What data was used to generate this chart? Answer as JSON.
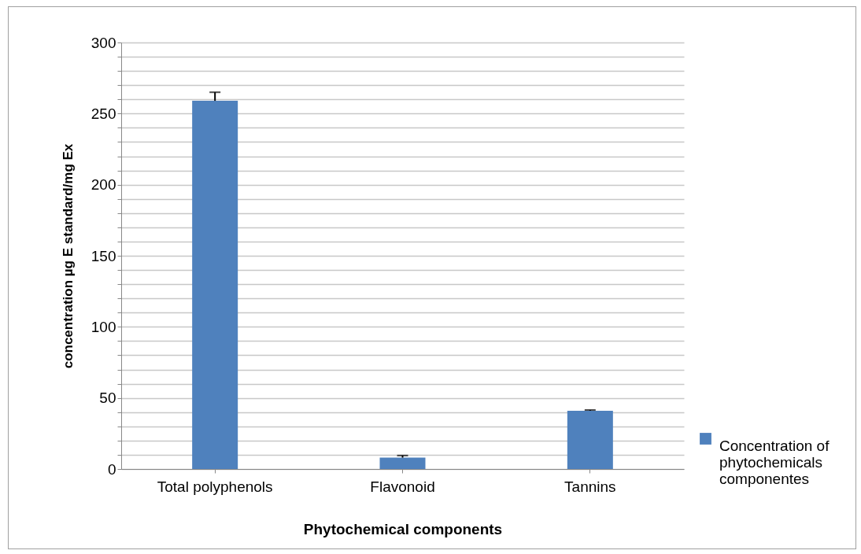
{
  "chart_data": {
    "type": "bar",
    "xlabel": "Phytochemical components",
    "ylabel": "concentration µg E standard/mg Ex",
    "categories": [
      "Total polyphenols",
      "Flavonoid",
      "Tannins"
    ],
    "series": [
      {
        "name": "Concentration of phytochemicals componentes",
        "color": "#4f81bd",
        "values": [
          259,
          8,
          41
        ],
        "errors": [
          [
            259,
            265
          ],
          [
            8,
            9.5
          ],
          [
            41,
            41.5
          ]
        ]
      }
    ],
    "ylim": [
      0,
      300
    ],
    "yticks": [
      0,
      {
        "value": 10,
        "label": null
      },
      {
        "value": 20,
        "label": null
      },
      {
        "value": 30,
        "label": null
      },
      {
        "value": 40,
        "label": null
      },
      50,
      {
        "value": 60,
        "label": null
      },
      {
        "value": 70,
        "label": null
      },
      {
        "value": 80,
        "label": null
      },
      {
        "value": 90,
        "label": null
      },
      100,
      {
        "value": 110,
        "label": null
      },
      {
        "value": 120,
        "label": null
      },
      {
        "value": 130,
        "label": null
      },
      {
        "value": 140,
        "label": null
      },
      150,
      {
        "value": 160,
        "label": null
      },
      {
        "value": 170,
        "label": null
      },
      {
        "value": 180,
        "label": null
      },
      {
        "value": 190,
        "label": null
      },
      200,
      {
        "value": 210,
        "label": null
      },
      {
        "value": 220,
        "label": null
      },
      {
        "value": 230,
        "label": null
      },
      {
        "value": 240,
        "label": null
      },
      250,
      {
        "value": 260,
        "label": null
      },
      {
        "value": 270,
        "label": null
      },
      {
        "value": 280,
        "label": null
      },
      {
        "value": 290,
        "label": null
      },
      300
    ],
    "grid": "y",
    "legend": "right"
  }
}
